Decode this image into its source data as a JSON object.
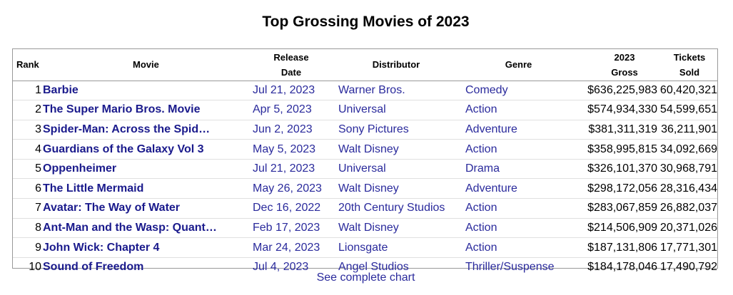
{
  "page": {
    "title": "Top Grossing Movies of 2023",
    "footer_link": "See complete chart"
  },
  "table": {
    "headers": {
      "rank": "Rank",
      "movie": "Movie",
      "release_line1": "Release",
      "release_line2": "Date",
      "distributor": "Distributor",
      "genre": "Genre",
      "gross_line1": "2023",
      "gross_line2": "Gross",
      "tickets_line1": "Tickets",
      "tickets_line2": "Sold"
    },
    "rows": [
      {
        "rank": "1",
        "movie": "Barbie",
        "release": "Jul 21, 2023",
        "distributor": "Warner Bros.",
        "genre": "Comedy",
        "gross": "$636,225,983",
        "tickets": "60,420,321"
      },
      {
        "rank": "2",
        "movie": "The Super Mario Bros. Movie",
        "release": "Apr 5, 2023",
        "distributor": "Universal",
        "genre": "Action",
        "gross": "$574,934,330",
        "tickets": "54,599,651"
      },
      {
        "rank": "3",
        "movie": "Spider-Man: Across the Spid…",
        "release": "Jun 2, 2023",
        "distributor": "Sony Pictures",
        "genre": "Adventure",
        "gross": "$381,311,319",
        "tickets": "36,211,901"
      },
      {
        "rank": "4",
        "movie": "Guardians of the Galaxy Vol 3",
        "release": "May 5, 2023",
        "distributor": "Walt Disney",
        "genre": "Action",
        "gross": "$358,995,815",
        "tickets": "34,092,669"
      },
      {
        "rank": "5",
        "movie": "Oppenheimer",
        "release": "Jul 21, 2023",
        "distributor": "Universal",
        "genre": "Drama",
        "gross": "$326,101,370",
        "tickets": "30,968,791"
      },
      {
        "rank": "6",
        "movie": "The Little Mermaid",
        "release": "May 26, 2023",
        "distributor": "Walt Disney",
        "genre": "Adventure",
        "gross": "$298,172,056",
        "tickets": "28,316,434"
      },
      {
        "rank": "7",
        "movie": "Avatar: The Way of Water",
        "release": "Dec 16, 2022",
        "distributor": "20th Century Studios",
        "genre": "Action",
        "gross": "$283,067,859",
        "tickets": "26,882,037"
      },
      {
        "rank": "8",
        "movie": "Ant-Man and the Wasp: Quant…",
        "release": "Feb 17, 2023",
        "distributor": "Walt Disney",
        "genre": "Action",
        "gross": "$214,506,909",
        "tickets": "20,371,026"
      },
      {
        "rank": "9",
        "movie": "John Wick: Chapter 4",
        "release": "Mar 24, 2023",
        "distributor": "Lionsgate",
        "genre": "Action",
        "gross": "$187,131,806",
        "tickets": "17,771,301"
      },
      {
        "rank": "10",
        "movie": "Sound of Freedom",
        "release": "Jul 4, 2023",
        "distributor": "Angel Studios",
        "genre": "Thriller/Suspense",
        "gross": "$184,178,046",
        "tickets": "17,490,792"
      }
    ]
  },
  "colors": {
    "link": "#2a2a9c",
    "movie_link": "#1a1a8c",
    "border": "#999999"
  }
}
